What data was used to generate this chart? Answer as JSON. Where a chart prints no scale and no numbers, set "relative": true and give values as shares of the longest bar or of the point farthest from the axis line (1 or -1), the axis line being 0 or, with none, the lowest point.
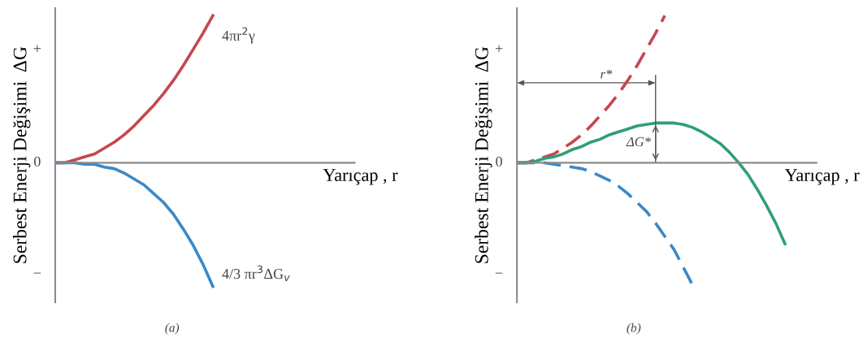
{
  "chart_data": [
    {
      "type": "line",
      "relative": true,
      "xlabel": "Yarıçap , r",
      "ylabel": "Serbest Enerji Değişimi  ΔG",
      "annotations": [
        "+",
        "0",
        "−",
        "(a)"
      ],
      "categories": [
        null,
        null,
        null,
        null,
        null,
        null,
        null,
        null,
        null,
        null,
        null,
        null,
        null,
        null,
        null,
        null,
        null,
        null,
        null,
        null,
        null,
        null,
        null,
        null,
        null,
        null,
        null,
        null,
        null,
        null,
        null
      ],
      "series": [
        {
          "name": "4πr$^{2}$γ",
          "color": "#c4484e",
          "values": [
            0,
            0,
            0.02,
            0.04,
            0.06,
            0.1,
            0.14,
            0.19,
            0.25,
            0.32,
            0.39,
            0.47,
            0.56,
            0.66,
            0.77,
            0.88,
            1,
            null,
            null,
            null,
            null,
            null,
            null,
            null,
            null,
            null,
            null,
            null,
            null,
            null,
            null
          ]
        },
        {
          "name": "4/3 πr$^{3}$ΔG$_{v}$",
          "color": "#3a88c9",
          "values": [
            0,
            0,
            0,
            -0.01,
            -0.01,
            -0.03,
            -0.04,
            -0.07,
            -0.11,
            -0.15,
            -0.21,
            -0.27,
            -0.35,
            -0.45,
            -0.56,
            -0.69,
            -0.84,
            null,
            null,
            null,
            null,
            null,
            null,
            null,
            null,
            null,
            null,
            null,
            null,
            null,
            null
          ]
        }
      ]
    },
    {
      "type": "line",
      "relative": true,
      "xlabel": "Yarıçap , r",
      "ylabel": "Serbest Enerji Değişimi  ΔG",
      "annotations": [
        "+",
        "0",
        "−",
        "r*",
        "ΔG*",
        "(b)"
      ],
      "categories": [
        null,
        null,
        null,
        null,
        null,
        null,
        null,
        null,
        null,
        null,
        null,
        null,
        null,
        null,
        null,
        null,
        null,
        null,
        null,
        null,
        null,
        null,
        null,
        null,
        null,
        null,
        null,
        null,
        null,
        null,
        null,
        null,
        null
      ],
      "series": [
        {
          "color": "#c4484e",
          "line_style": "dashed",
          "values": [
            0,
            0,
            0.02,
            0.04,
            0.06,
            0.1,
            0.14,
            0.19,
            0.25,
            0.32,
            0.39,
            0.47,
            0.56,
            0.66,
            0.77,
            0.88,
            1,
            null,
            null,
            null,
            null,
            null,
            null,
            null,
            null,
            null,
            null,
            null,
            null,
            null,
            null,
            null,
            null
          ]
        },
        {
          "color": "#3a88c9",
          "line_style": "dashed",
          "values": [
            0,
            0,
            0,
            0,
            -0.01,
            -0.02,
            -0.03,
            -0.04,
            -0.06,
            -0.09,
            -0.12,
            -0.16,
            -0.21,
            -0.27,
            -0.33,
            -0.41,
            -0.5,
            -0.59,
            -0.71,
            -0.83,
            null,
            null,
            null,
            null,
            null,
            null,
            null,
            null,
            null,
            null,
            null,
            null,
            null
          ]
        },
        {
          "color": "#2e9e78",
          "line_style": "solid",
          "values": [
            0,
            0,
            0.01,
            0.03,
            0.04,
            0.06,
            0.09,
            0.11,
            0.14,
            0.16,
            0.19,
            0.21,
            0.23,
            0.25,
            0.26,
            0.27,
            0.27,
            0.27,
            0.26,
            0.24,
            0.21,
            0.17,
            0.13,
            0.07,
            0,
            -0.08,
            -0.18,
            -0.29,
            -0.41,
            -0.55,
            null,
            null,
            null
          ]
        }
      ]
    }
  ]
}
